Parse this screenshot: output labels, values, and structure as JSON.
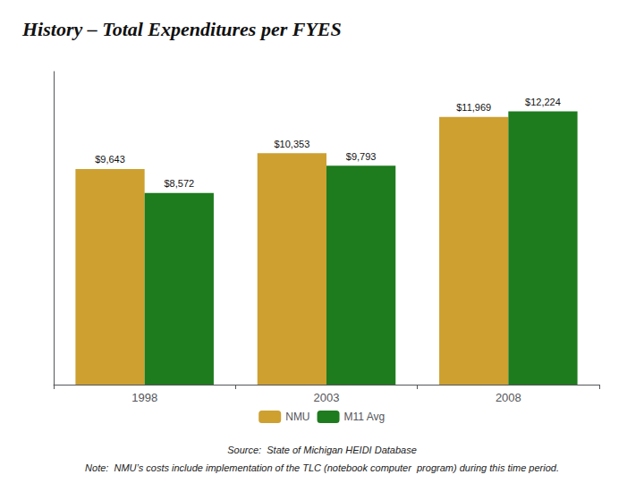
{
  "chart_data": {
    "type": "bar",
    "title": "History – Total Expenditures per FYES",
    "categories": [
      "1998",
      "2003",
      "2008"
    ],
    "series": [
      {
        "name": "NMU",
        "color": "#CDA030",
        "values": [
          9643,
          10353,
          11969
        ],
        "value_labels": [
          "$9,643",
          "$10,353",
          "$11,969"
        ]
      },
      {
        "name": "M11 Avg",
        "color": "#1E7B1E",
        "values": [
          8572,
          9793,
          12224
        ],
        "value_labels": [
          "$8,572",
          "$9,793",
          "$12,224"
        ]
      }
    ],
    "ylim": [
      0,
      14000
    ],
    "yticks": [],
    "grid": false,
    "legend": "bottom",
    "data_labels": true,
    "tick_labels": "x",
    "annotations": [
      "Source:  State of Michigan HEIDI Database",
      "Note:  NMU’s costs include implementation of the TLC (notebook computer  program) during this time period."
    ]
  }
}
